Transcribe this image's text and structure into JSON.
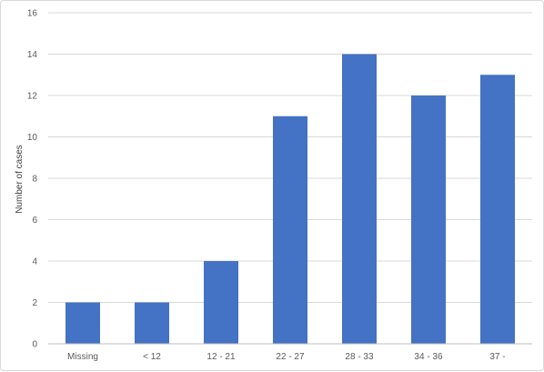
{
  "chart_data": {
    "type": "bar",
    "title": "",
    "xlabel": "",
    "ylabel": "Number of cases",
    "categories": [
      "Missing",
      "< 12",
      "12 - 21",
      "22 - 27",
      "28 - 33",
      "34 - 36",
      "37 -"
    ],
    "values": [
      2,
      2,
      4,
      11,
      14,
      12,
      13
    ],
    "ylim": [
      0,
      16
    ],
    "yticks": [
      0,
      2,
      4,
      6,
      8,
      10,
      12,
      14,
      16
    ],
    "grid": true,
    "legend": "none",
    "colors": {
      "bar": "#4472c4",
      "grid": "#d9d9d9",
      "axis": "#bfbfbf"
    }
  }
}
